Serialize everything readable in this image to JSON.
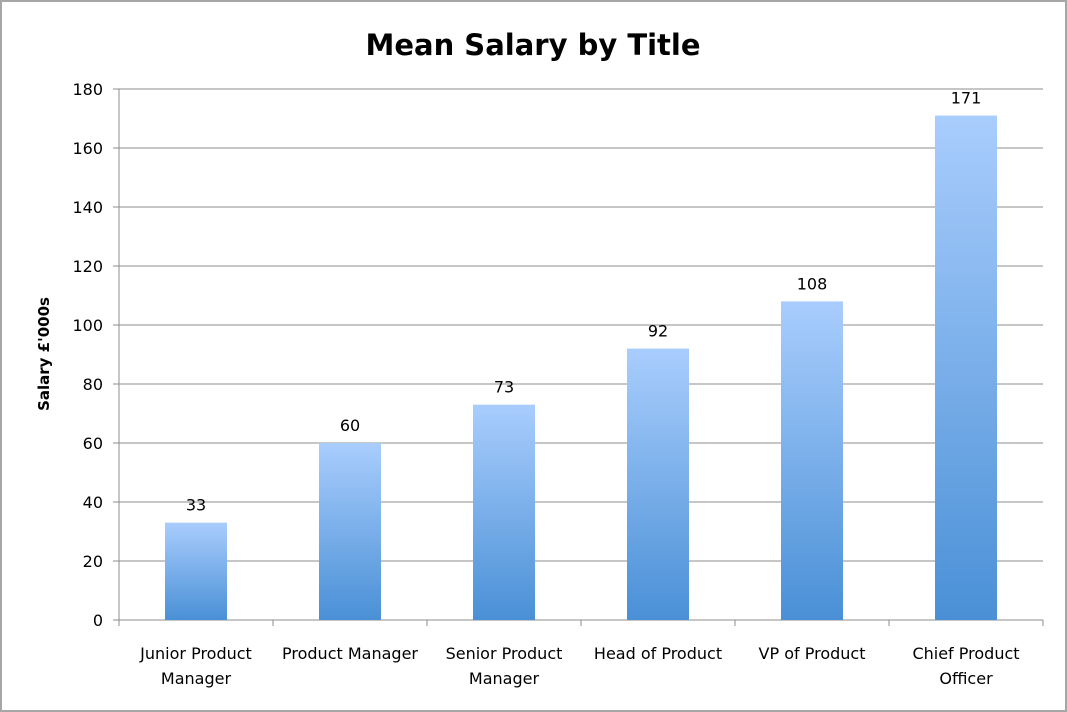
{
  "chart_data": {
    "type": "bar",
    "title": "Mean Salary by Title",
    "xlabel": "",
    "ylabel": "Salary £'000s",
    "categories": [
      [
        "Junior Product",
        "Manager"
      ],
      [
        "Product Manager"
      ],
      [
        "Senior Product",
        "Manager"
      ],
      [
        "Head of Product"
      ],
      [
        "VP of Product"
      ],
      [
        "Chief Product",
        "Officer"
      ]
    ],
    "values": [
      33,
      60,
      73,
      92,
      108,
      171
    ],
    "data_labels": [
      "33",
      "60",
      "73",
      "92",
      "108",
      "171"
    ],
    "ylim": [
      0,
      180
    ],
    "yticks": [
      0,
      20,
      40,
      60,
      80,
      100,
      120,
      140,
      160,
      180
    ],
    "grid": true,
    "legend": "none",
    "colors": {
      "bar_top": "#a9cdfd",
      "bar_bottom": "#4a90d6",
      "grid": "#8c8c8c",
      "border": "#a6a6a6"
    }
  }
}
